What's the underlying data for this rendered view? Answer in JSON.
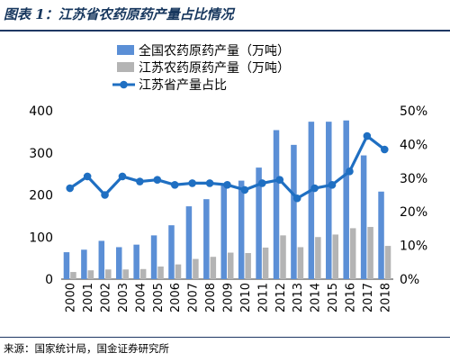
{
  "header": {
    "title": "图表 1：江苏省农药原药产量占比情况"
  },
  "footer": {
    "source": "来源：国家统计局，国金证券研究所"
  },
  "chart_data": {
    "type": "bar",
    "categories": [
      "2000",
      "2001",
      "2002",
      "2003",
      "2004",
      "2005",
      "2006",
      "2007",
      "2008",
      "2009",
      "2010",
      "2011",
      "2012",
      "2013",
      "2014",
      "2015",
      "2016",
      "2017",
      "2018"
    ],
    "series": [
      {
        "name": "全国农药原药产量（万吨）",
        "kind": "bar",
        "axis": "left",
        "color": "#5b8fd6",
        "values": [
          64,
          70,
          91,
          76,
          82,
          104,
          128,
          173,
          190,
          226,
          234,
          265,
          354,
          319,
          374,
          374,
          377,
          294,
          208
        ]
      },
      {
        "name": "江苏农药原药产量（万吨）",
        "kind": "bar",
        "axis": "left",
        "color": "#b4b4b4",
        "values": [
          17,
          21,
          23,
          23,
          24,
          30,
          35,
          48,
          53,
          63,
          62,
          75,
          104,
          76,
          100,
          106,
          121,
          124,
          79
        ]
      },
      {
        "name": "江苏省产量占比",
        "kind": "line",
        "axis": "right",
        "color": "#1f6fc2",
        "values": [
          27,
          30.5,
          25,
          30.5,
          29,
          29.5,
          28,
          28.5,
          28.5,
          28,
          26.5,
          28.5,
          29.5,
          24,
          27,
          28,
          32,
          42.5,
          38.5
        ]
      }
    ],
    "y_left": {
      "ticks": [
        "0",
        "100",
        "200",
        "300",
        "400"
      ],
      "ylim": [
        0,
        400
      ]
    },
    "y_right": {
      "ticks": [
        "0%",
        "10%",
        "20%",
        "30%",
        "40%",
        "50%"
      ],
      "ylim": [
        0,
        50
      ]
    },
    "grid": false,
    "legend_position": "top"
  }
}
